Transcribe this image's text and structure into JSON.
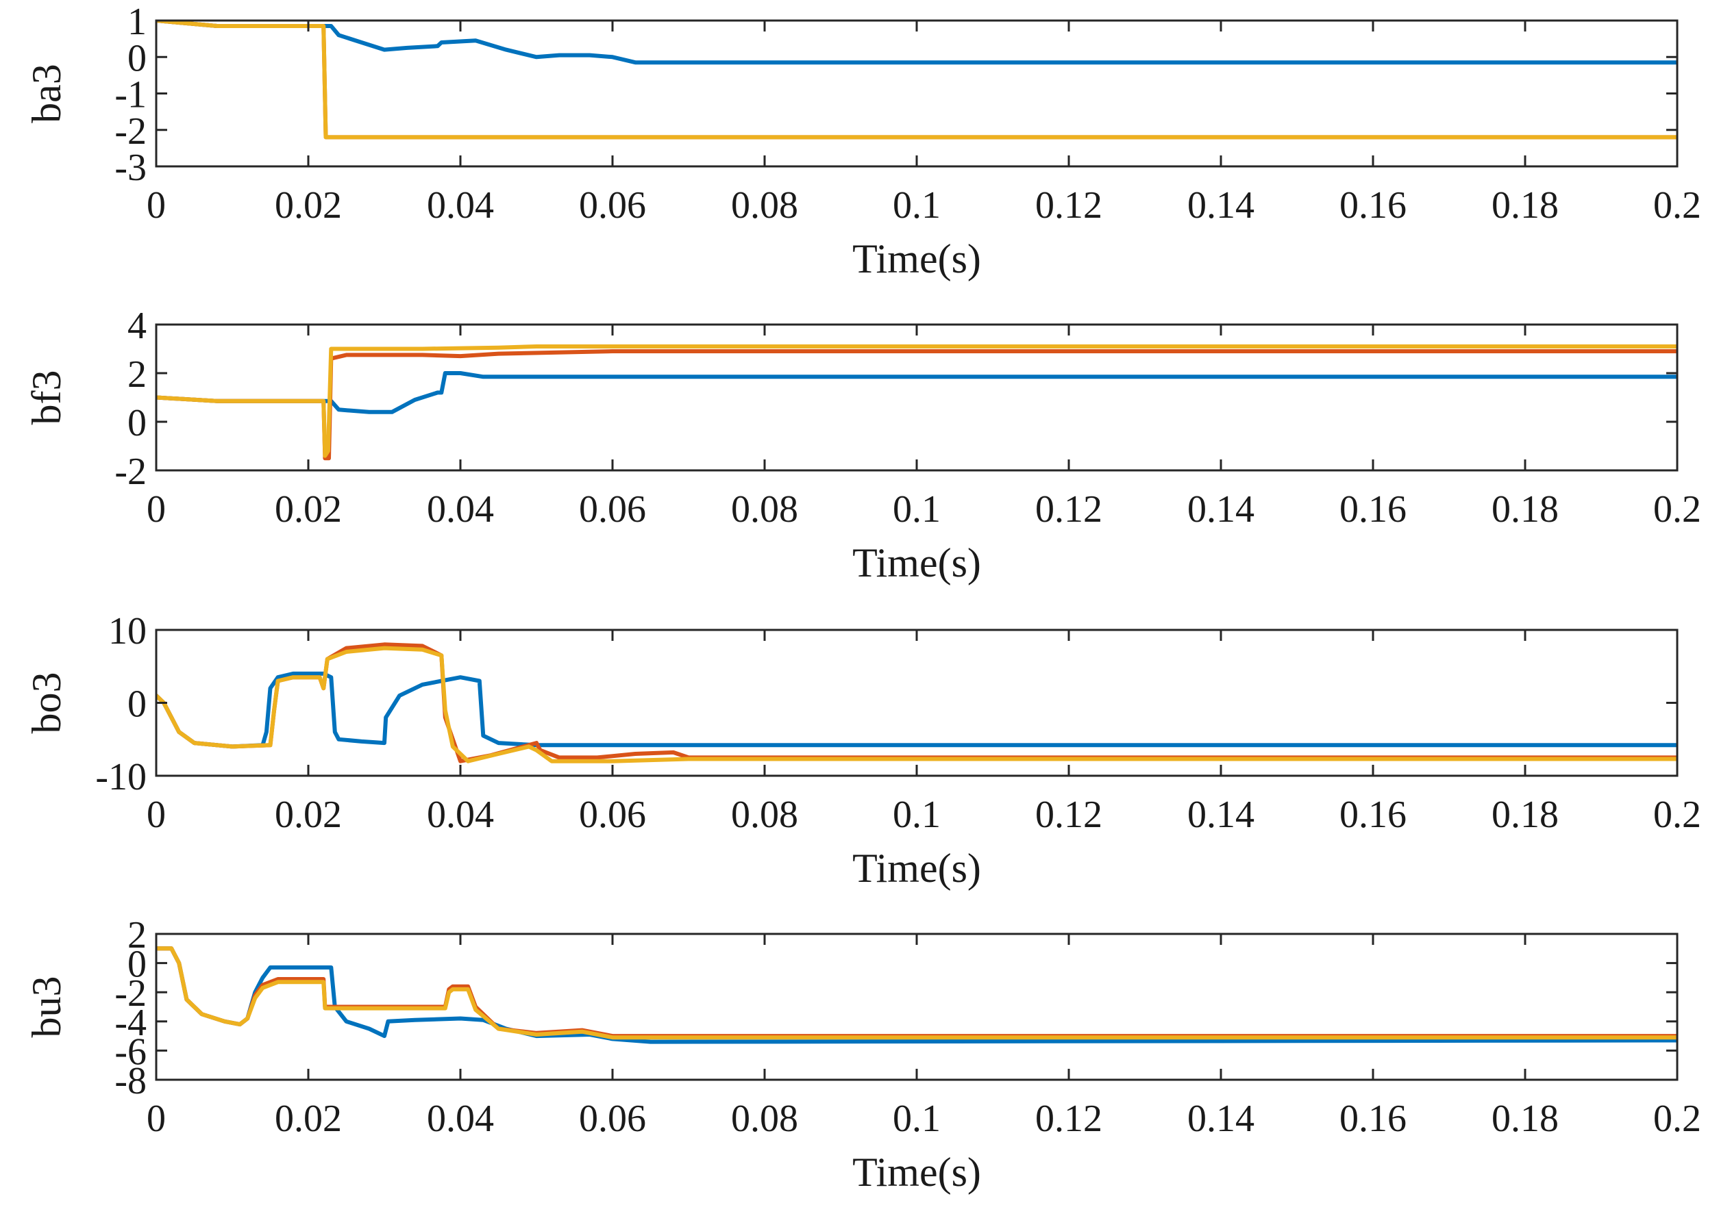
{
  "chart_data": [
    {
      "type": "line",
      "ylabel": "ba3",
      "xlabel": "Time(s)",
      "xlim": [
        0,
        0.2
      ],
      "ylim": [
        -3,
        1
      ],
      "xticks": [
        0,
        0.02,
        0.04,
        0.06,
        0.08,
        0.1,
        0.12,
        0.14,
        0.16,
        0.18,
        0.2
      ],
      "xtick_labels": [
        "0",
        "0.02",
        "0.04",
        "0.06",
        "0.08",
        "0.1",
        "0.12",
        "0.14",
        "0.16",
        "0.18",
        "0.2"
      ],
      "yticks": [
        1,
        0,
        -1,
        -2,
        -3
      ],
      "ytick_labels": [
        "1",
        "0",
        "-1",
        "-2",
        "-3"
      ],
      "series": [
        {
          "color": "#0072BD",
          "points": [
            [
              0,
              1
            ],
            [
              0.008,
              0.85
            ],
            [
              0.022,
              0.85
            ],
            [
              0.0225,
              0.85
            ],
            [
              0.023,
              0.85
            ],
            [
              0.024,
              0.6
            ],
            [
              0.027,
              0.4
            ],
            [
              0.03,
              0.2
            ],
            [
              0.033,
              0.25
            ],
            [
              0.037,
              0.3
            ],
            [
              0.0375,
              0.4
            ],
            [
              0.042,
              0.45
            ],
            [
              0.046,
              0.2
            ],
            [
              0.05,
              0
            ],
            [
              0.053,
              0.05
            ],
            [
              0.057,
              0.05
            ],
            [
              0.06,
              0
            ],
            [
              0.063,
              -0.15
            ],
            [
              0.07,
              -0.15
            ],
            [
              0.2,
              -0.15
            ]
          ]
        },
        {
          "color": "#D95319",
          "points": [
            [
              0,
              1
            ],
            [
              0.008,
              0.85
            ],
            [
              0.022,
              0.85
            ],
            [
              0.0223,
              -2.2
            ],
            [
              0.2,
              -2.2
            ]
          ]
        },
        {
          "color": "#EDB120",
          "points": [
            [
              0,
              1
            ],
            [
              0.008,
              0.85
            ],
            [
              0.022,
              0.85
            ],
            [
              0.0223,
              -2.2
            ],
            [
              0.2,
              -2.2
            ]
          ]
        }
      ]
    },
    {
      "type": "line",
      "ylabel": "bf3",
      "xlabel": "Time(s)",
      "xlim": [
        0,
        0.2
      ],
      "ylim": [
        -2,
        4
      ],
      "xticks": [
        0,
        0.02,
        0.04,
        0.06,
        0.08,
        0.1,
        0.12,
        0.14,
        0.16,
        0.18,
        0.2
      ],
      "xtick_labels": [
        "0",
        "0.02",
        "0.04",
        "0.06",
        "0.08",
        "0.1",
        "0.12",
        "0.14",
        "0.16",
        "0.18",
        "0.2"
      ],
      "yticks": [
        4,
        2,
        0,
        -2
      ],
      "ytick_labels": [
        "4",
        "2",
        "0",
        "-2"
      ],
      "series": [
        {
          "color": "#0072BD",
          "points": [
            [
              0,
              1
            ],
            [
              0.008,
              0.85
            ],
            [
              0.022,
              0.85
            ],
            [
              0.023,
              0.85
            ],
            [
              0.024,
              0.5
            ],
            [
              0.028,
              0.4
            ],
            [
              0.031,
              0.4
            ],
            [
              0.034,
              0.9
            ],
            [
              0.037,
              1.2
            ],
            [
              0.0375,
              1.2
            ],
            [
              0.038,
              2
            ],
            [
              0.04,
              2
            ],
            [
              0.043,
              1.85
            ],
            [
              0.2,
              1.85
            ]
          ]
        },
        {
          "color": "#D95319",
          "points": [
            [
              0,
              1
            ],
            [
              0.008,
              0.85
            ],
            [
              0.022,
              0.85
            ],
            [
              0.0222,
              -1.5
            ],
            [
              0.0227,
              -1.5
            ],
            [
              0.023,
              2.6
            ],
            [
              0.025,
              2.75
            ],
            [
              0.035,
              2.75
            ],
            [
              0.04,
              2.7
            ],
            [
              0.045,
              2.8
            ],
            [
              0.06,
              2.9
            ],
            [
              0.2,
              2.9
            ]
          ]
        },
        {
          "color": "#EDB120",
          "points": [
            [
              0,
              1
            ],
            [
              0.008,
              0.85
            ],
            [
              0.022,
              0.85
            ],
            [
              0.0222,
              -1.4
            ],
            [
              0.0226,
              -1.2
            ],
            [
              0.023,
              3
            ],
            [
              0.035,
              3
            ],
            [
              0.045,
              3.05
            ],
            [
              0.05,
              3.1
            ],
            [
              0.06,
              3.1
            ],
            [
              0.2,
              3.1
            ]
          ]
        }
      ]
    },
    {
      "type": "line",
      "ylabel": "bo3",
      "xlabel": "Time(s)",
      "xlim": [
        0,
        0.2
      ],
      "ylim": [
        -10,
        10
      ],
      "xticks": [
        0,
        0.02,
        0.04,
        0.06,
        0.08,
        0.1,
        0.12,
        0.14,
        0.16,
        0.18,
        0.2
      ],
      "xtick_labels": [
        "0",
        "0.02",
        "0.04",
        "0.06",
        "0.08",
        "0.1",
        "0.12",
        "0.14",
        "0.16",
        "0.18",
        "0.2"
      ],
      "yticks": [
        10,
        0,
        -10
      ],
      "ytick_labels": [
        "10",
        "0",
        "-10"
      ],
      "series": [
        {
          "color": "#0072BD",
          "points": [
            [
              0,
              1
            ],
            [
              0.001,
              0
            ],
            [
              0.003,
              -4
            ],
            [
              0.005,
              -5.5
            ],
            [
              0.01,
              -6
            ],
            [
              0.014,
              -5.8
            ],
            [
              0.0145,
              -4
            ],
            [
              0.015,
              2
            ],
            [
              0.016,
              3.5
            ],
            [
              0.018,
              4
            ],
            [
              0.022,
              4
            ],
            [
              0.023,
              3.5
            ],
            [
              0.0235,
              -4
            ],
            [
              0.024,
              -5
            ],
            [
              0.027,
              -5.3
            ],
            [
              0.03,
              -5.5
            ],
            [
              0.0302,
              -2
            ],
            [
              0.032,
              1
            ],
            [
              0.035,
              2.5
            ],
            [
              0.04,
              3.5
            ],
            [
              0.0425,
              3
            ],
            [
              0.043,
              -4.5
            ],
            [
              0.045,
              -5.5
            ],
            [
              0.05,
              -5.8
            ],
            [
              0.2,
              -5.8
            ]
          ]
        },
        {
          "color": "#D95319",
          "points": [
            [
              0,
              1
            ],
            [
              0.001,
              0
            ],
            [
              0.003,
              -4
            ],
            [
              0.005,
              -5.5
            ],
            [
              0.01,
              -6
            ],
            [
              0.015,
              -5.8
            ],
            [
              0.0155,
              -1
            ],
            [
              0.016,
              3
            ],
            [
              0.018,
              3.5
            ],
            [
              0.0215,
              3.5
            ],
            [
              0.022,
              2
            ],
            [
              0.0225,
              6
            ],
            [
              0.025,
              7.5
            ],
            [
              0.03,
              8
            ],
            [
              0.035,
              7.8
            ],
            [
              0.0375,
              6.5
            ],
            [
              0.038,
              -2
            ],
            [
              0.04,
              -8
            ],
            [
              0.044,
              -7.2
            ],
            [
              0.05,
              -5.5
            ],
            [
              0.0505,
              -6.5
            ],
            [
              0.053,
              -7.5
            ],
            [
              0.058,
              -7.5
            ],
            [
              0.063,
              -7
            ],
            [
              0.068,
              -6.8
            ],
            [
              0.07,
              -7.5
            ],
            [
              0.2,
              -7.5
            ]
          ]
        },
        {
          "color": "#EDB120",
          "points": [
            [
              0,
              1
            ],
            [
              0.001,
              0
            ],
            [
              0.003,
              -4
            ],
            [
              0.005,
              -5.5
            ],
            [
              0.01,
              -6
            ],
            [
              0.015,
              -5.8
            ],
            [
              0.0155,
              -1
            ],
            [
              0.016,
              3
            ],
            [
              0.018,
              3.5
            ],
            [
              0.0215,
              3.5
            ],
            [
              0.022,
              2
            ],
            [
              0.0225,
              6
            ],
            [
              0.025,
              7
            ],
            [
              0.03,
              7.5
            ],
            [
              0.035,
              7.3
            ],
            [
              0.0375,
              6.5
            ],
            [
              0.038,
              -1
            ],
            [
              0.039,
              -6
            ],
            [
              0.041,
              -8
            ],
            [
              0.045,
              -7
            ],
            [
              0.049,
              -6
            ],
            [
              0.05,
              -6.5
            ],
            [
              0.052,
              -8
            ],
            [
              0.06,
              -8
            ],
            [
              0.07,
              -7.7
            ],
            [
              0.2,
              -7.7
            ]
          ]
        }
      ]
    },
    {
      "type": "line",
      "ylabel": "bu3",
      "xlabel": "Time(s)",
      "xlim": [
        0,
        0.2
      ],
      "ylim": [
        -8,
        2
      ],
      "xticks": [
        0,
        0.02,
        0.04,
        0.06,
        0.08,
        0.1,
        0.12,
        0.14,
        0.16,
        0.18,
        0.2
      ],
      "xtick_labels": [
        "0",
        "0.02",
        "0.04",
        "0.06",
        "0.08",
        "0.1",
        "0.12",
        "0.14",
        "0.16",
        "0.18",
        "0.2"
      ],
      "yticks": [
        2,
        0,
        -2,
        -4,
        -6,
        -8
      ],
      "ytick_labels": [
        "2",
        "0",
        "-2",
        "-4",
        "-6",
        "-8"
      ],
      "series": [
        {
          "color": "#0072BD",
          "points": [
            [
              0,
              1
            ],
            [
              0.002,
              1
            ],
            [
              0.003,
              0
            ],
            [
              0.004,
              -2.5
            ],
            [
              0.006,
              -3.5
            ],
            [
              0.009,
              -4
            ],
            [
              0.011,
              -4.2
            ],
            [
              0.012,
              -3.8
            ],
            [
              0.013,
              -2
            ],
            [
              0.014,
              -1
            ],
            [
              0.015,
              -0.3
            ],
            [
              0.023,
              -0.3
            ],
            [
              0.0235,
              -3
            ],
            [
              0.025,
              -4
            ],
            [
              0.028,
              -4.5
            ],
            [
              0.03,
              -5
            ],
            [
              0.0305,
              -4
            ],
            [
              0.034,
              -3.9
            ],
            [
              0.04,
              -3.8
            ],
            [
              0.043,
              -3.9
            ],
            [
              0.046,
              -4.5
            ],
            [
              0.05,
              -5
            ],
            [
              0.057,
              -4.9
            ],
            [
              0.06,
              -5.2
            ],
            [
              0.065,
              -5.4
            ],
            [
              0.2,
              -5.3
            ]
          ]
        },
        {
          "color": "#D95319",
          "points": [
            [
              0,
              1
            ],
            [
              0.002,
              1
            ],
            [
              0.003,
              0
            ],
            [
              0.004,
              -2.5
            ],
            [
              0.006,
              -3.5
            ],
            [
              0.009,
              -4
            ],
            [
              0.011,
              -4.2
            ],
            [
              0.012,
              -3.8
            ],
            [
              0.013,
              -2.2
            ],
            [
              0.014,
              -1.5
            ],
            [
              0.016,
              -1.1
            ],
            [
              0.022,
              -1.1
            ],
            [
              0.0222,
              -3
            ],
            [
              0.038,
              -3
            ],
            [
              0.0385,
              -1.8
            ],
            [
              0.039,
              -1.6
            ],
            [
              0.041,
              -1.6
            ],
            [
              0.042,
              -3
            ],
            [
              0.045,
              -4.5
            ],
            [
              0.05,
              -4.8
            ],
            [
              0.056,
              -4.6
            ],
            [
              0.06,
              -5
            ],
            [
              0.07,
              -5
            ],
            [
              0.2,
              -5
            ]
          ]
        },
        {
          "color": "#EDB120",
          "points": [
            [
              0,
              1
            ],
            [
              0.002,
              1
            ],
            [
              0.003,
              0
            ],
            [
              0.004,
              -2.5
            ],
            [
              0.006,
              -3.5
            ],
            [
              0.009,
              -4
            ],
            [
              0.011,
              -4.2
            ],
            [
              0.012,
              -3.8
            ],
            [
              0.013,
              -2.4
            ],
            [
              0.014,
              -1.7
            ],
            [
              0.016,
              -1.3
            ],
            [
              0.022,
              -1.3
            ],
            [
              0.0222,
              -3.1
            ],
            [
              0.038,
              -3.1
            ],
            [
              0.0385,
              -2
            ],
            [
              0.039,
              -1.8
            ],
            [
              0.041,
              -1.8
            ],
            [
              0.042,
              -3.2
            ],
            [
              0.045,
              -4.5
            ],
            [
              0.05,
              -4.9
            ],
            [
              0.056,
              -4.7
            ],
            [
              0.06,
              -5.1
            ],
            [
              0.07,
              -5.1
            ],
            [
              0.2,
              -5.1
            ]
          ]
        }
      ]
    }
  ]
}
